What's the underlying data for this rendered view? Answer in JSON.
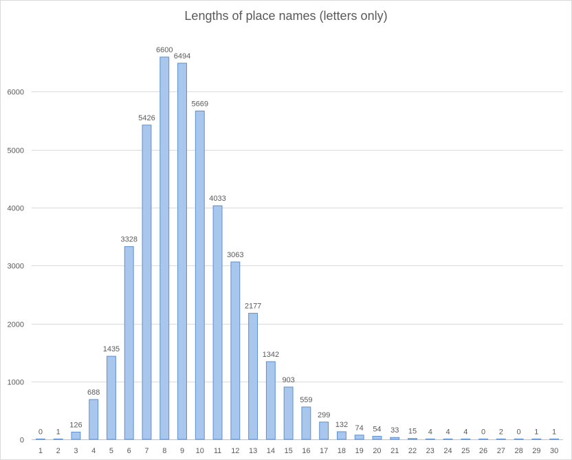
{
  "chart_data": {
    "type": "bar",
    "title": "Lengths of place names (letters only)",
    "xlabel": "",
    "ylabel": "",
    "categories": [
      "1",
      "2",
      "3",
      "4",
      "5",
      "6",
      "7",
      "8",
      "9",
      "10",
      "11",
      "12",
      "13",
      "14",
      "15",
      "16",
      "17",
      "18",
      "19",
      "20",
      "21",
      "22",
      "23",
      "24",
      "25",
      "26",
      "27",
      "28",
      "29",
      "30"
    ],
    "values": [
      0,
      1,
      126,
      688,
      1435,
      3328,
      5426,
      6600,
      6494,
      5669,
      4033,
      3063,
      2177,
      1342,
      903,
      559,
      299,
      132,
      74,
      54,
      33,
      15,
      4,
      4,
      4,
      0,
      2,
      0,
      1,
      1
    ],
    "ylim": [
      0,
      7000
    ],
    "yticks": [
      0,
      1000,
      2000,
      3000,
      4000,
      5000,
      6000
    ],
    "grid": true,
    "legend": "none",
    "data_labels": true,
    "bar_fill": "#a9c6ec",
    "bar_stroke": "#5b8fd0",
    "gridline_color": "#d9d9d9",
    "text_color": "#595959"
  }
}
